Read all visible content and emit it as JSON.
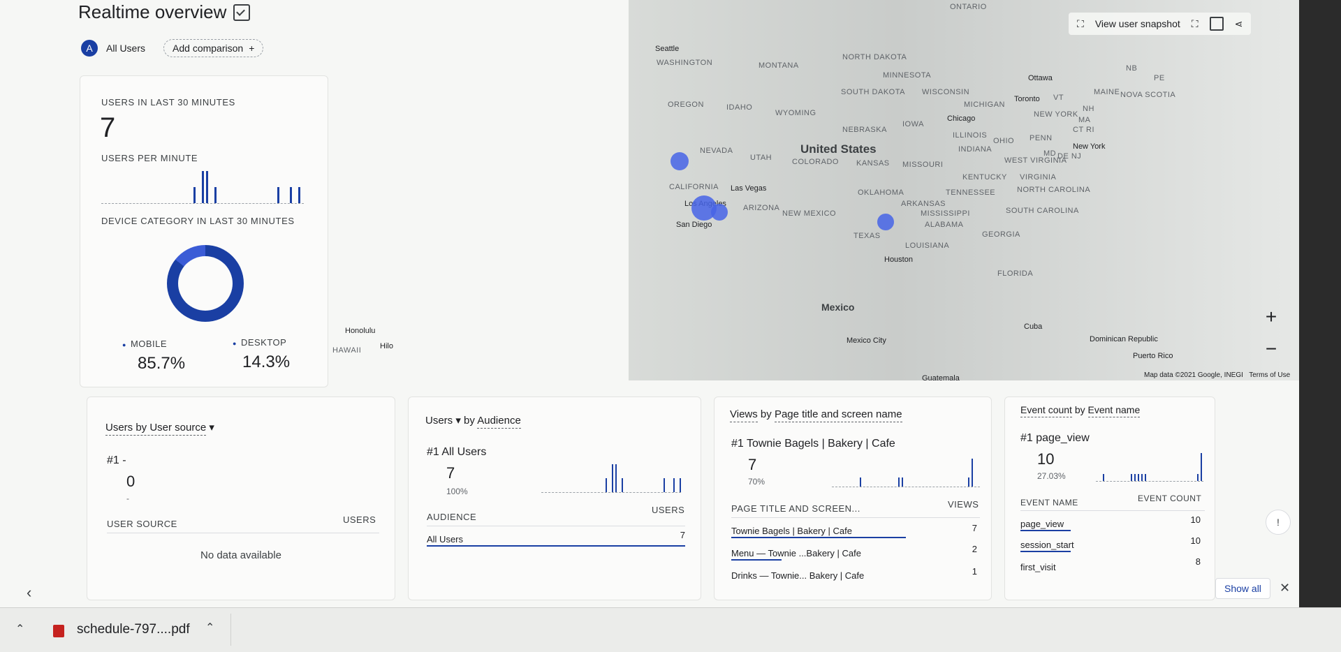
{
  "header": {
    "title": "Realtime overview"
  },
  "comparison": {
    "avatar_letter": "A",
    "segment": "All Users",
    "add_label": "Add comparison",
    "add_icon": "+"
  },
  "toolbar": {
    "snapshot_label": "View user snapshot"
  },
  "map": {
    "labels": [
      "ONTARIO",
      "WASHINGTON",
      "MONTANA",
      "NORTH DAKOTA",
      "MINNESOTA",
      "SOUTH DAKOTA",
      "WISCONSIN",
      "MICHIGAN",
      "OREGON",
      "IDAHO",
      "WYOMING",
      "NEBRASKA",
      "IOWA",
      "ILLINOIS",
      "OHIO",
      "PENN",
      "NEVADA",
      "UTAH",
      "COLORADO",
      "KANSAS",
      "MISSOURI",
      "INDIANA",
      "WEST VIRGINIA",
      "VIRGINIA",
      "KENTUCKY",
      "CALIFORNIA",
      "ARIZONA",
      "NEW MEXICO",
      "OKLAHOMA",
      "ARKANSAS",
      "TENNESSEE",
      "NORTH CAROLINA",
      "SOUTH CAROLINA",
      "MISSISSIPPI",
      "ALABAMA",
      "GEORGIA",
      "TEXAS",
      "LOUISIANA",
      "FLORIDA",
      "MAINE",
      "NOVA SCOTIA",
      "NB",
      "PE",
      "VT",
      "NH",
      "MA",
      "CT RI",
      "NEW YORK",
      "MD",
      "DE NJ",
      "HAWAII"
    ],
    "cities": [
      "Seattle",
      "Ottawa",
      "Toronto",
      "Chicago",
      "New York",
      "Las Vegas",
      "Los Angeles",
      "San Diego",
      "Houston",
      "Honolulu",
      "Hilo",
      "Mexico City",
      "Cuba",
      "Dominican Republic",
      "Puerto Rico",
      "Guatemala"
    ],
    "countries": [
      "United States",
      "Mexico"
    ],
    "credit": "Map data ©2021 Google, INEGI",
    "terms": "Terms of Use",
    "zoom_in": "+",
    "zoom_out": "−"
  },
  "users_card": {
    "heading": "USERS IN LAST 30 MINUTES",
    "count": "7",
    "per_minute_heading": "USERS PER MINUTE",
    "per_minute_bars": [
      0,
      0,
      0,
      0,
      0,
      0,
      0,
      0,
      0,
      0,
      0,
      0,
      0,
      0,
      0,
      0,
      0,
      0,
      0,
      0,
      0,
      0,
      1,
      0,
      2,
      2,
      0,
      1,
      0,
      0,
      0,
      0,
      0,
      0,
      0,
      0,
      0,
      0,
      0,
      0,
      0,
      0,
      1,
      0,
      0,
      1,
      0,
      1
    ],
    "device_heading": "DEVICE CATEGORY IN LAST 30 MINUTES",
    "mobile_label": "MOBILE",
    "mobile_pct": "85.7%",
    "desktop_label": "DESKTOP",
    "desktop_pct": "14.3%"
  },
  "source_card": {
    "title": "Users by User source",
    "rank": "#1  -",
    "value": "0",
    "sub": "-",
    "col1": "USER SOURCE",
    "col2": "USERS",
    "empty": "No data available"
  },
  "audience_card": {
    "title_metric": "Users",
    "title_by": "by",
    "title_dim": "Audience",
    "rank": "#1  All Users",
    "value": "7",
    "pct": "100%",
    "bars": [
      0,
      0,
      0,
      0,
      0,
      0,
      0,
      0,
      0,
      0,
      0,
      0,
      0,
      0,
      0,
      0,
      0,
      0,
      0,
      0,
      1,
      0,
      2,
      2,
      0,
      1,
      0,
      0,
      0,
      0,
      0,
      0,
      0,
      0,
      0,
      0,
      0,
      0,
      1,
      0,
      0,
      1,
      0,
      1
    ],
    "col1": "AUDIENCE",
    "col2": "USERS",
    "rows": [
      {
        "name": "All Users",
        "value": "7"
      }
    ]
  },
  "views_card": {
    "title_metric": "Views",
    "title_by": "by",
    "title_dim": "Page title and screen name",
    "rank": "#1  Townie Bagels | Bakery | Cafe",
    "value": "7",
    "pct": "70%",
    "bars": [
      0,
      0,
      0,
      0,
      0,
      0,
      0,
      0,
      1,
      0,
      0,
      0,
      0,
      0,
      0,
      0,
      0,
      0,
      0,
      1,
      1,
      0,
      0,
      0,
      0,
      0,
      0,
      0,
      0,
      0,
      0,
      0,
      0,
      0,
      0,
      0,
      0,
      0,
      0,
      1,
      3
    ],
    "col1": "PAGE TITLE AND SCREEN...",
    "col2": "VIEWS",
    "rows": [
      {
        "name": "Townie Bagels | Bakery | Cafe",
        "value": "7"
      },
      {
        "name": "Menu — Townie ...Bakery | Cafe",
        "value": "2"
      },
      {
        "name": "Drinks — Townie... Bakery | Cafe",
        "value": "1"
      }
    ]
  },
  "events_card": {
    "title_metric": "Event count",
    "title_by": "by",
    "title_dim": "Event name",
    "rank": "#1  page_view",
    "value": "10",
    "pct": "27.03%",
    "bars": [
      0,
      0,
      1,
      0,
      0,
      0,
      0,
      0,
      0,
      0,
      1,
      1,
      1,
      1,
      1,
      0,
      0,
      0,
      0,
      0,
      0,
      0,
      0,
      0,
      0,
      0,
      0,
      0,
      0,
      1,
      4
    ],
    "col1": "EVENT NAME",
    "col2": "EVENT COUNT",
    "rows": [
      {
        "name": "page_view",
        "value": "10"
      },
      {
        "name": "session_start",
        "value": "10"
      },
      {
        "name": "first_visit",
        "value": "8"
      }
    ]
  },
  "footer": {
    "show_all": "Show all"
  },
  "download": {
    "file": "schedule-797....pdf"
  },
  "colors": {
    "accent": "#1a3fa3",
    "map_dot": "#4664e6"
  }
}
